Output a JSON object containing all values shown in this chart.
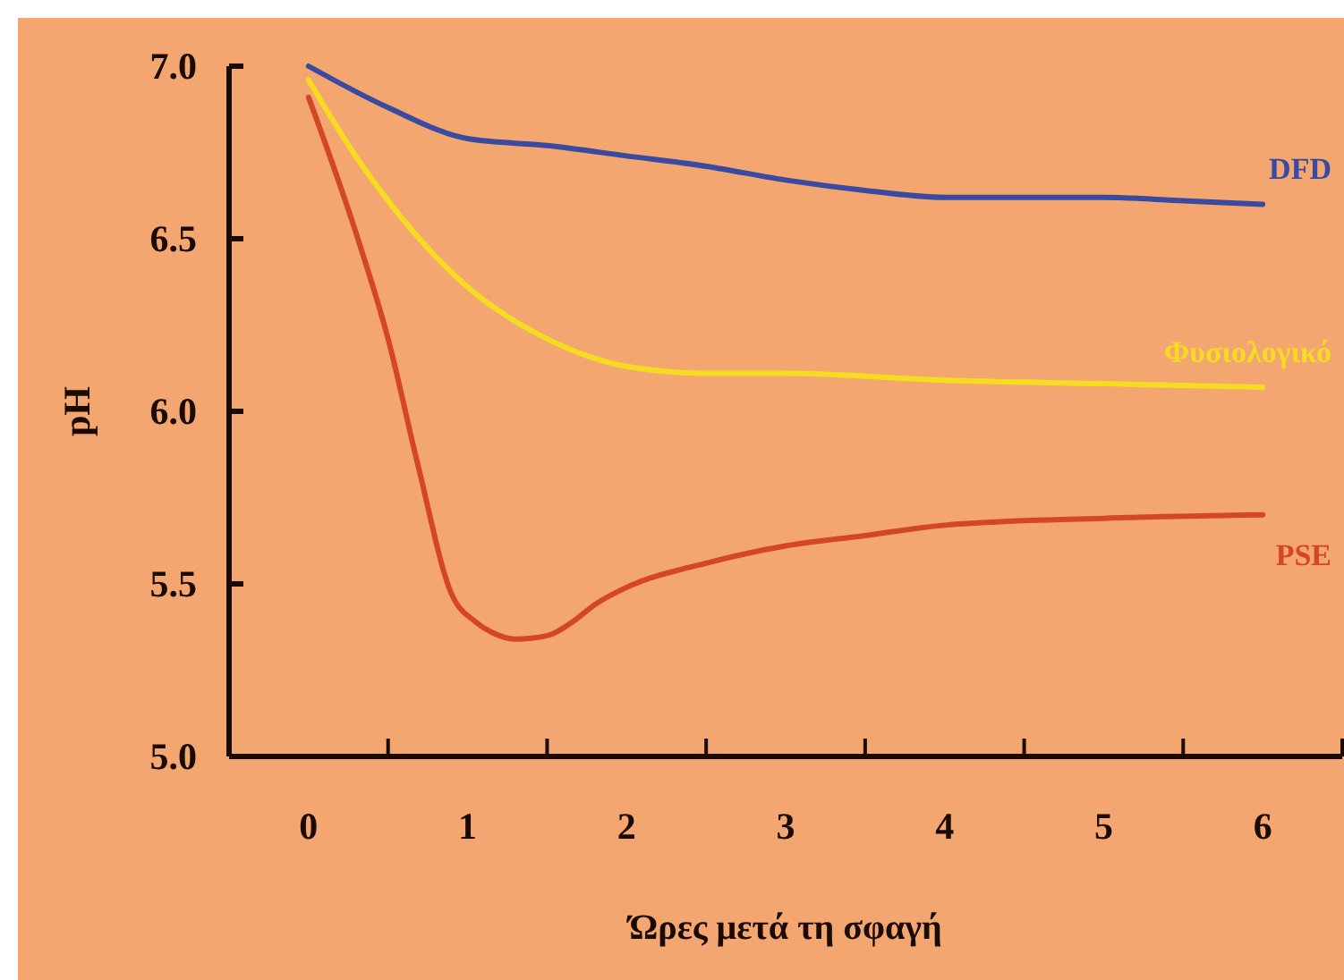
{
  "chart_data": {
    "type": "line",
    "xlabel": "Ώρες μετά τη σφαγή",
    "ylabel": "pH",
    "xlim": [
      -0.5,
      6.5
    ],
    "xticks": [
      {
        "value": 0,
        "label": "0"
      },
      {
        "value": 0.5,
        "label": null
      },
      {
        "value": 1,
        "label": "1"
      },
      {
        "value": 1.5,
        "label": null
      },
      {
        "value": 2,
        "label": "2"
      },
      {
        "value": 2.5,
        "label": null
      },
      {
        "value": 3,
        "label": "3"
      },
      {
        "value": 3.5,
        "label": null
      },
      {
        "value": 4,
        "label": "4"
      },
      {
        "value": 4.5,
        "label": null
      },
      {
        "value": 5,
        "label": "5"
      },
      {
        "value": 5.5,
        "label": null
      },
      {
        "value": 6,
        "label": "6"
      },
      {
        "value": 6.5,
        "label": null
      }
    ],
    "ylim": [
      5,
      7
    ],
    "yticks": [
      {
        "value": 5,
        "label": "5.0"
      },
      {
        "value": 5.5,
        "label": "5.5"
      },
      {
        "value": 6,
        "label": "6.0"
      },
      {
        "value": 6.5,
        "label": "6.5"
      },
      {
        "value": 7,
        "label": "7.0"
      }
    ],
    "grid": false,
    "marker": "none",
    "line_style": "solid",
    "series": [
      {
        "name": "DFD",
        "color": "#3a4aa0",
        "x": [
          0,
          0.5,
          1,
          1.5,
          2,
          2.5,
          3,
          3.5,
          4,
          4.5,
          5,
          5.5,
          6
        ],
        "values": [
          7.0,
          6.88,
          6.79,
          6.77,
          6.74,
          6.71,
          6.67,
          6.64,
          6.62,
          6.62,
          6.62,
          6.61,
          6.6
        ]
      },
      {
        "name": "Φυσιολογικό",
        "color": "#f5dc20",
        "x": [
          0,
          0.31,
          0.5,
          1,
          1.5,
          2,
          2.5,
          3,
          4,
          5,
          6
        ],
        "values": [
          6.96,
          6.73,
          6.61,
          6.36,
          6.21,
          6.13,
          6.11,
          6.11,
          6.09,
          6.08,
          6.07
        ]
      },
      {
        "name": "PSE",
        "color": "#d4452a",
        "x": [
          0,
          0.31,
          0.5,
          0.69,
          0.9,
          1.05,
          1.15,
          1.3,
          1.5,
          1.66,
          1.8,
          2,
          2.5,
          3,
          3.5,
          4,
          5,
          6
        ],
        "values": [
          6.91,
          6.5,
          6.21,
          5.84,
          5.47,
          5.39,
          5.36,
          5.34,
          5.35,
          5.39,
          5.44,
          5.49,
          5.56,
          5.61,
          5.64,
          5.67,
          5.69,
          5.7
        ]
      }
    ]
  }
}
